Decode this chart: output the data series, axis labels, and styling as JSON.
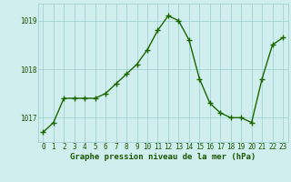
{
  "hours": [
    0,
    1,
    2,
    3,
    4,
    5,
    6,
    7,
    8,
    9,
    10,
    11,
    12,
    13,
    14,
    15,
    16,
    17,
    18,
    19,
    20,
    21,
    22,
    23
  ],
  "pressure": [
    1016.7,
    1016.9,
    1017.4,
    1017.4,
    1017.4,
    1017.4,
    1017.5,
    1017.7,
    1017.9,
    1018.1,
    1018.4,
    1018.8,
    1019.1,
    1019.0,
    1018.6,
    1017.8,
    1017.3,
    1017.1,
    1017.0,
    1017.0,
    1016.9,
    1017.8,
    1018.5,
    1018.65
  ],
  "line_color": "#1a6600",
  "marker": "+",
  "marker_size": 4,
  "line_width": 1.0,
  "bg_color": "#d0eeee",
  "grid_color": "#99cccc",
  "yticks": [
    1017,
    1018,
    1019
  ],
  "ylim": [
    1016.5,
    1019.35
  ],
  "xlim": [
    -0.5,
    23.5
  ],
  "xlabel": "Graphe pression niveau de la mer (hPa)",
  "xlabel_fontsize": 6.5,
  "xlabel_color": "#1a5500",
  "tick_fontsize": 5.5,
  "tick_color": "#1a5500"
}
